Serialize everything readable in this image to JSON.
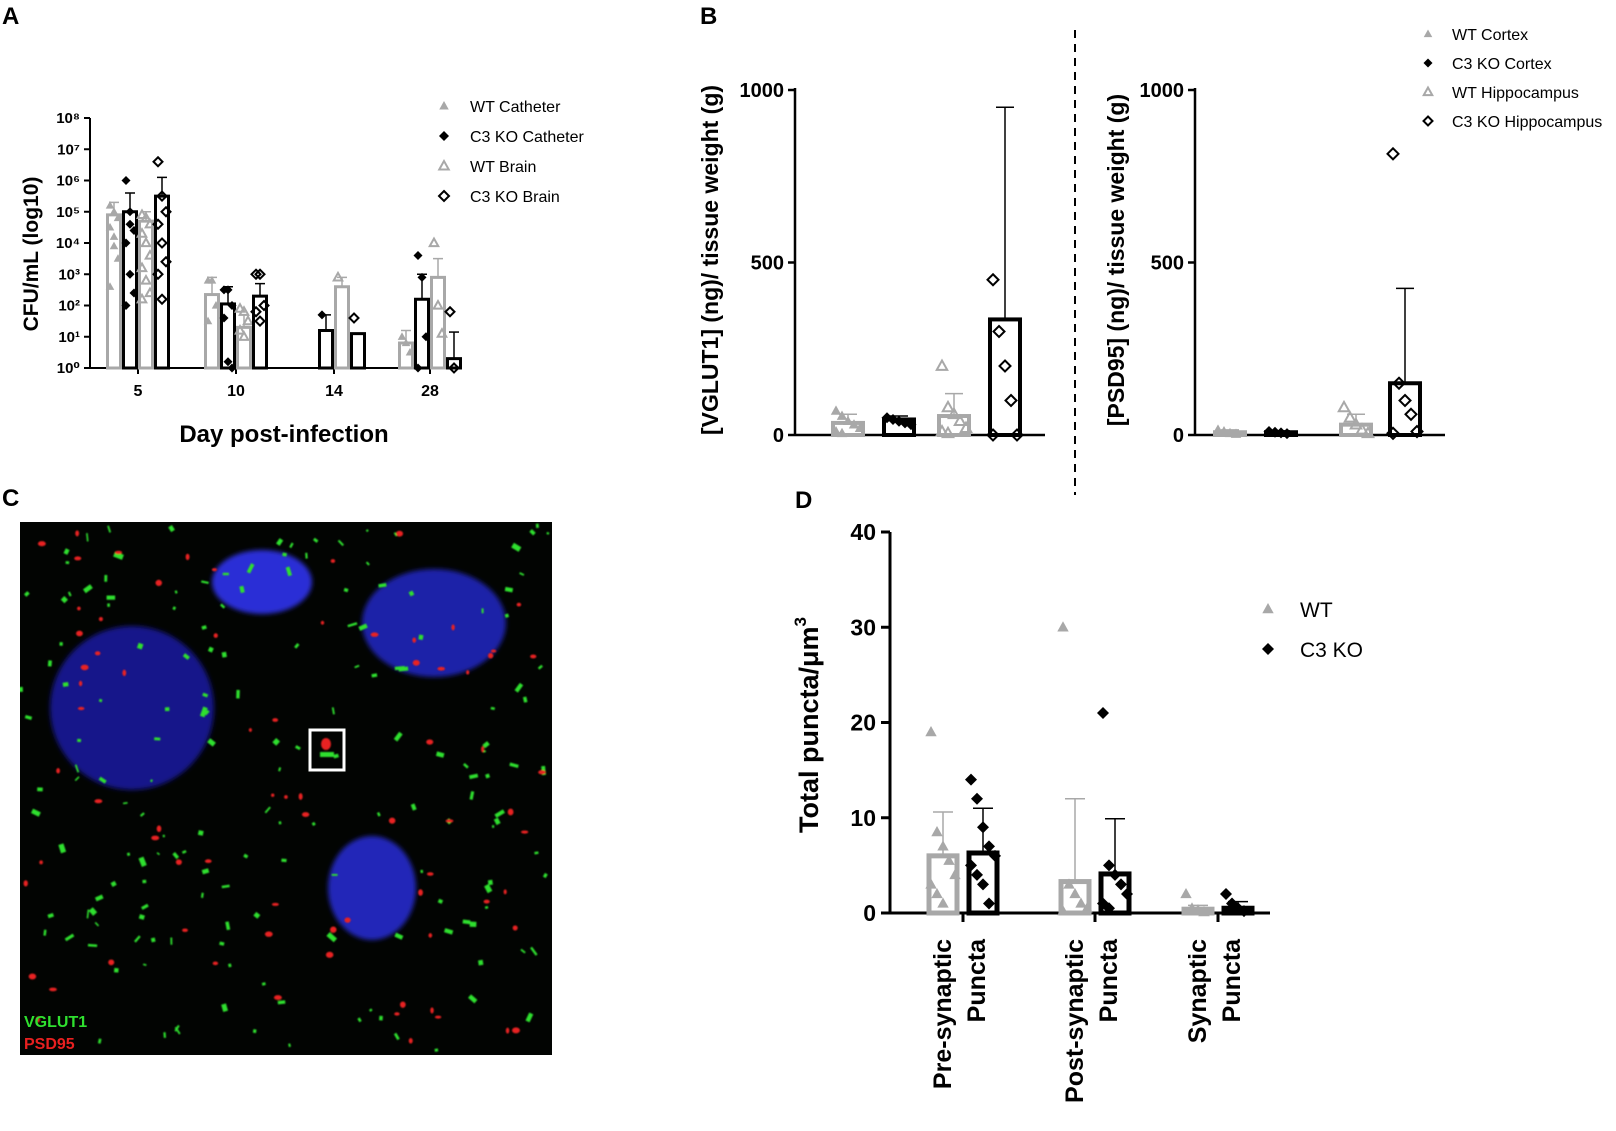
{
  "panels": {
    "A": {
      "letter": "A"
    },
    "B": {
      "letter": "B"
    },
    "C": {
      "letter": "C",
      "label_green": "VGLUT1",
      "label_red": "PSD95"
    },
    "D": {
      "letter": "D"
    }
  },
  "colors": {
    "wt": "#a8a8a8",
    "ko": "#000000",
    "image_bg": "#020402",
    "nucleus": "#2b2fd6",
    "vglut1": "#2fe02f",
    "psd95": "#e82020"
  },
  "chart_data": [
    {
      "id": "A",
      "type": "bar",
      "scale": "log",
      "ylabel": "CFU/mL (log10)",
      "xlabel": "Day post-infection",
      "yticks": [
        "10⁰",
        "10¹",
        "10²",
        "10³",
        "10⁴",
        "10⁵",
        "10⁶",
        "10⁷",
        "10⁸"
      ],
      "ylim_exp": [
        0,
        8
      ],
      "categories": [
        "5",
        "10",
        "14",
        "28"
      ],
      "legend": [
        "WT Catheter",
        "C3 KO Catheter",
        "WT Brain",
        "C3 KO Brain"
      ],
      "series": [
        {
          "name": "WT Catheter",
          "color": "wt",
          "marker": "triangle-filled",
          "mean_exp": [
            4.9,
            2.35,
            null,
            0.8
          ],
          "err_exp": [
            5.3,
            2.9,
            null,
            1.2
          ],
          "points_exp": [
            [
              5.2,
              5.0,
              4.8,
              4.5,
              4.2,
              3.5,
              2.6,
              3.9
            ],
            [
              2.8,
              2.8,
              2.0,
              1.5
            ],
            [],
            [
              1.0,
              0.8,
              0.5
            ]
          ]
        },
        {
          "name": "C3 KO Catheter",
          "color": "ko",
          "marker": "diamond-filled",
          "mean_exp": [
            5.0,
            2.05,
            1.2,
            2.2
          ],
          "err_exp": [
            5.6,
            2.6,
            1.7,
            3.0
          ],
          "points_exp": [
            [
              6.0,
              5.0,
              4.4,
              4.0,
              3.0,
              2.4,
              2.0,
              4.6
            ],
            [
              2.5,
              2.5,
              2.0,
              1.6,
              0.2,
              0.0
            ],
            [
              1.7
            ],
            [
              3.6,
              2.9,
              1.0,
              0.0
            ]
          ]
        },
        {
          "name": "WT Brain",
          "color": "wt",
          "marker": "triangle-open",
          "mean_exp": [
            4.7,
            1.3,
            2.6,
            2.9
          ],
          "err_exp": [
            5.0,
            1.7,
            2.9,
            3.5
          ],
          "points_exp": [
            [
              4.9,
              4.8,
              4.6,
              4.3,
              4.0,
              3.6,
              3.2,
              2.8,
              2.4,
              2.2
            ],
            [
              1.9,
              1.8,
              1.5,
              1.2,
              1.0
            ],
            [
              2.9
            ],
            [
              4.0,
              2.0,
              1.1
            ]
          ]
        },
        {
          "name": "C3 KO Brain",
          "color": "ko",
          "marker": "diamond-open",
          "mean_exp": [
            5.5,
            2.3,
            1.1,
            0.3
          ],
          "err_exp": [
            6.1,
            2.7,
            null,
            1.15
          ],
          "points_exp": [
            [
              6.6,
              5.5,
              5.0,
              4.6,
              4.0,
              3.4,
              3.0,
              2.2
            ],
            [
              3.0,
              3.0,
              2.0,
              1.8,
              1.5
            ],
            [
              1.6
            ],
            [
              1.8,
              0.0
            ]
          ]
        }
      ]
    },
    {
      "id": "B",
      "type": "bar",
      "subpanels": [
        {
          "ylabel": "[VGLUT1] (ng)/ tissue weight (g)",
          "yticks": [
            "0",
            "500",
            "1000"
          ],
          "ylim": [
            0,
            1000
          ],
          "bars": [
            {
              "group": "WT Cortex",
              "mean": 35,
              "err": 60,
              "points": [
                70,
                55,
                40,
                30,
                20,
                10,
                5
              ]
            },
            {
              "group": "C3 KO Cortex",
              "mean": 45,
              "err": 55,
              "points": [
                50,
                45,
                40,
                35,
                30
              ]
            },
            {
              "group": "WT Hippocampus",
              "mean": 55,
              "err": 120,
              "points": [
                200,
                80,
                60,
                40,
                20,
                10,
                5
              ]
            },
            {
              "group": "C3 KO Hippocampus",
              "mean": 335,
              "err": 950,
              "points": [
                450,
                300,
                200,
                100,
                0,
                0
              ]
            }
          ]
        },
        {
          "ylabel": "[PSD95] (ng)/ tissue weight (g)",
          "yticks": [
            "0",
            "500",
            "1000"
          ],
          "ylim": [
            0,
            1000
          ],
          "bars": [
            {
              "group": "WT Cortex",
              "mean": 8,
              "err": 15,
              "points": [
                15,
                10,
                5,
                3
              ]
            },
            {
              "group": "C3 KO Cortex",
              "mean": 8,
              "err": 12,
              "points": [
                10,
                8,
                6,
                4
              ]
            },
            {
              "group": "WT Hippocampus",
              "mean": 30,
              "err": 60,
              "points": [
                80,
                50,
                30,
                15,
                5
              ]
            },
            {
              "group": "C3 KO Hippocampus",
              "mean": 150,
              "err": 425,
              "points": [
                815,
                150,
                100,
                60,
                10,
                5
              ]
            }
          ]
        }
      ],
      "legend": [
        "WT Cortex",
        "C3 KO Cortex",
        "WT Hippocampus",
        "C3 KO Hippocampus"
      ]
    },
    {
      "id": "D",
      "type": "bar",
      "ylabel": "Total puncta/μm",
      "ylabel_sup": "3",
      "yticks": [
        "0",
        "10",
        "20",
        "30",
        "40"
      ],
      "ylim": [
        0,
        40
      ],
      "categories": [
        [
          "Pre-synaptic",
          "Puncta"
        ],
        [
          "Post-synaptic",
          "Puncta"
        ],
        [
          "Synaptic",
          "Puncta"
        ]
      ],
      "legend": [
        "WT",
        "C3 KO"
      ],
      "series": [
        {
          "name": "WT",
          "color": "wt",
          "mean": [
            6.0,
            3.3,
            0.4
          ],
          "err": [
            10.6,
            12.0,
            0.8
          ],
          "points": [
            [
              19,
              8.5,
              7.0,
              5.5,
              4.0,
              3.0,
              2.0,
              1.0
            ],
            [
              30,
              3.0,
              2.0,
              1.0,
              0.5,
              0.2
            ],
            [
              2.0,
              0.5,
              0.3,
              0.1
            ]
          ]
        },
        {
          "name": "C3 KO",
          "color": "ko",
          "mean": [
            6.3,
            4.1,
            0.5
          ],
          "err": [
            11.0,
            9.9,
            1.2
          ],
          "points": [
            [
              14,
              12,
              9,
              7,
              6,
              5,
              4,
              3,
              1
            ],
            [
              21,
              5,
              4,
              3,
              2,
              1,
              0.5
            ],
            [
              2.0,
              1.0,
              0.5,
              0.2
            ]
          ]
        }
      ]
    }
  ]
}
